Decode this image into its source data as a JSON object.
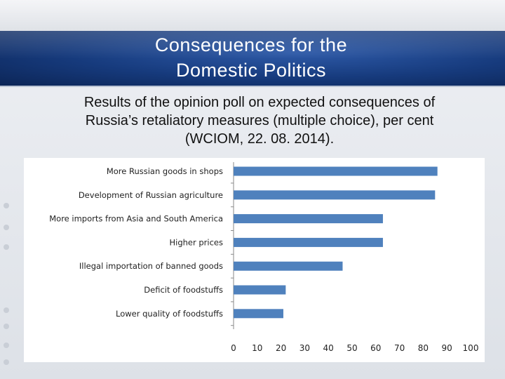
{
  "slide": {
    "title": "Consequences for the\nDomestic Politics",
    "subtitle": "Results of the opinion poll on expected consequences of\nRussia’s retaliatory measures (multiple choice), per cent\n(WCIOM, 22. 08. 2014)."
  },
  "colors": {
    "bar": "#4f81bd",
    "title_band": "#163a7c"
  },
  "chart_data": {
    "type": "bar",
    "orientation": "horizontal",
    "categories": [
      "More Russian goods in shops",
      "Development of Russian agriculture",
      "More imports from Asia and South America",
      "Higher prices",
      "Illegal importation of banned goods",
      "Deficit of foodstuffs",
      "Lower quality of foodstuffs"
    ],
    "values": [
      86,
      85,
      63,
      63,
      46,
      22,
      21
    ],
    "xlim": [
      0,
      100
    ],
    "xticks": [
      0,
      10,
      20,
      30,
      40,
      50,
      60,
      70,
      80,
      90,
      100
    ],
    "grid": false,
    "legend": "none"
  }
}
